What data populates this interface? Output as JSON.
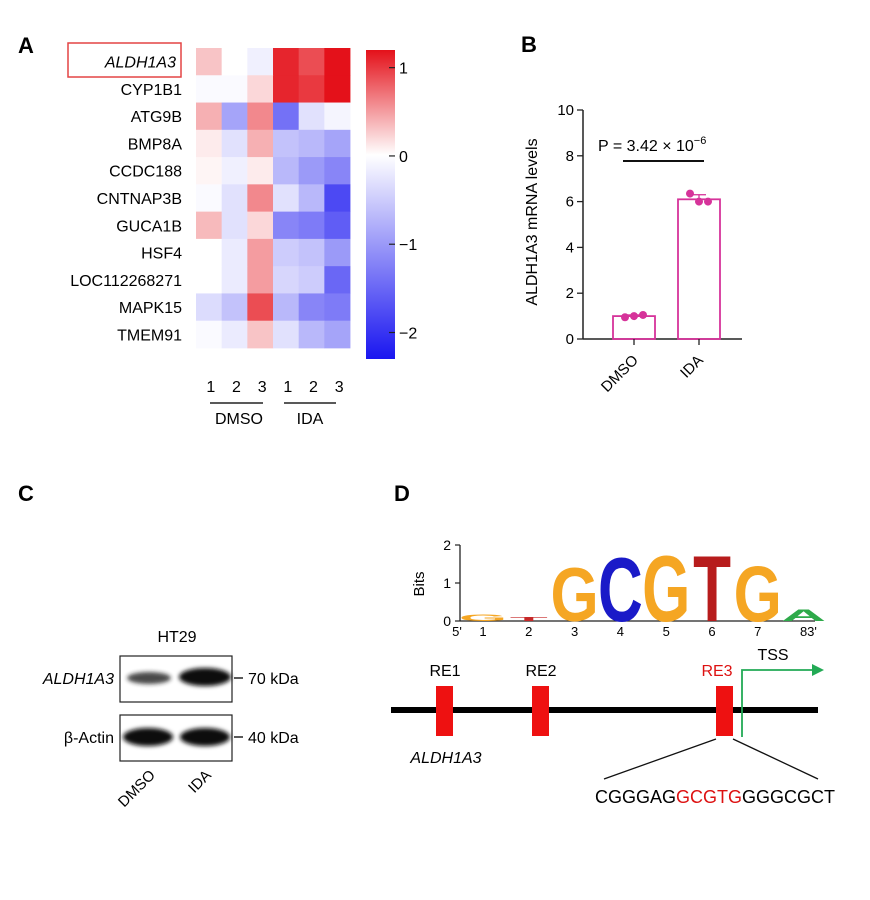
{
  "panels": {
    "a": "A",
    "b": "B",
    "c": "C",
    "d": "D"
  },
  "heatmap": {
    "rows": [
      "ALDH1A3",
      "CYP1B1",
      "ATG9B",
      "BMP8A",
      "CCDC188",
      "CNTNAP3B",
      "GUCA1B",
      "HSF4",
      "LOC112268271",
      "MAPK15",
      "TMEM91"
    ],
    "highlighted_row": "ALDH1A3",
    "columns": [
      "1",
      "2",
      "3",
      "1",
      "2",
      "3"
    ],
    "groups": [
      "DMSO",
      "IDA"
    ],
    "values": [
      [
        0.3,
        0.0,
        -0.15,
        1.1,
        0.9,
        1.2
      ],
      [
        -0.05,
        -0.05,
        0.2,
        1.1,
        1.0,
        1.4
      ],
      [
        0.4,
        -0.9,
        0.6,
        -1.4,
        -0.3,
        -0.1
      ],
      [
        0.1,
        -0.3,
        0.4,
        -0.6,
        -0.7,
        -0.9
      ],
      [
        0.05,
        -0.15,
        0.1,
        -0.7,
        -1.0,
        -1.2
      ],
      [
        -0.05,
        -0.3,
        0.6,
        -0.3,
        -0.7,
        -1.8
      ],
      [
        0.35,
        -0.3,
        0.2,
        -1.2,
        -1.3,
        -1.6
      ],
      [
        0.0,
        -0.2,
        0.5,
        -0.5,
        -0.6,
        -1.0
      ],
      [
        0.0,
        -0.2,
        0.5,
        -0.4,
        -0.5,
        -1.5
      ],
      [
        -0.35,
        -0.6,
        0.9,
        -0.7,
        -1.2,
        -1.3
      ],
      [
        -0.05,
        -0.2,
        0.3,
        -0.3,
        -0.7,
        -0.9
      ]
    ],
    "scale": {
      "min": -2.3,
      "max": 1.2,
      "ticks": [
        "1",
        "0",
        "−1",
        "−2"
      ],
      "tick_values": [
        1,
        0,
        -1,
        -2
      ]
    },
    "colors": {
      "high": "#e4111a",
      "mid": "#ffffff",
      "low": "#1a16f0"
    }
  },
  "chart_data": {
    "type": "bar",
    "categories": [
      "DMSO",
      "IDA"
    ],
    "values": [
      1.0,
      6.1
    ],
    "points": [
      [
        0.95,
        1.0,
        1.05
      ],
      [
        6.35,
        6.0,
        6.0
      ]
    ],
    "errors": [
      0.05,
      0.2
    ],
    "ylabel": "ALDH1A3 mRNA levels",
    "ylim": [
      0,
      10
    ],
    "yticks": [
      "0",
      "2",
      "4",
      "6",
      "8",
      "10"
    ],
    "ytick_values": [
      0,
      2,
      4,
      6,
      8,
      10
    ],
    "annotation_base": "P = 3.42 × 10",
    "annotation_exp": "−6",
    "color": "#d6339a"
  },
  "western_blot": {
    "cell_line": "HT29",
    "rows": [
      {
        "label": "ALDH1A3",
        "size": "70 kDa"
      },
      {
        "label": "β-Actin",
        "size": "40 kDa"
      }
    ],
    "lanes": [
      "DMSO",
      "IDA"
    ]
  },
  "motif": {
    "y_axis_label": "Bits",
    "y_ticks": [
      "0",
      "1",
      "2"
    ],
    "y_tick_values": [
      0,
      1,
      2
    ],
    "positions": [
      "1",
      "2",
      "3",
      "4",
      "5",
      "6",
      "7",
      "8"
    ],
    "end_5": "5'",
    "end_3": "3'",
    "letters": [
      {
        "letter": "G",
        "height": 0.18,
        "color": "#f5a623"
      },
      {
        "letter": "T",
        "height": 0.1,
        "color": "#c62828"
      },
      {
        "letter": "G",
        "height": 1.5,
        "color": "#f5a623"
      },
      {
        "letter": "C",
        "height": 1.8,
        "color": "#1a1ac8"
      },
      {
        "letter": "G",
        "height": 1.85,
        "color": "#f5a623"
      },
      {
        "letter": "T",
        "height": 1.85,
        "color": "#b71c1c"
      },
      {
        "letter": "G",
        "height": 1.55,
        "color": "#f5a623"
      },
      {
        "letter": "A",
        "height": 0.32,
        "color": "#2eaa4a"
      }
    ]
  },
  "promoter": {
    "gene": "ALDH1A3",
    "elements": [
      "RE1",
      "RE2",
      "RE3"
    ],
    "highlighted_element": "RE3",
    "tss_label": "TSS",
    "sequence_prefix": "CGGGAG",
    "sequence_motif": "GCGTG",
    "sequence_suffix": "GGGCGCT"
  },
  "colors": {
    "element_red": "#ee1111",
    "tss_green": "#22aa55",
    "box_red": "#e44444"
  }
}
